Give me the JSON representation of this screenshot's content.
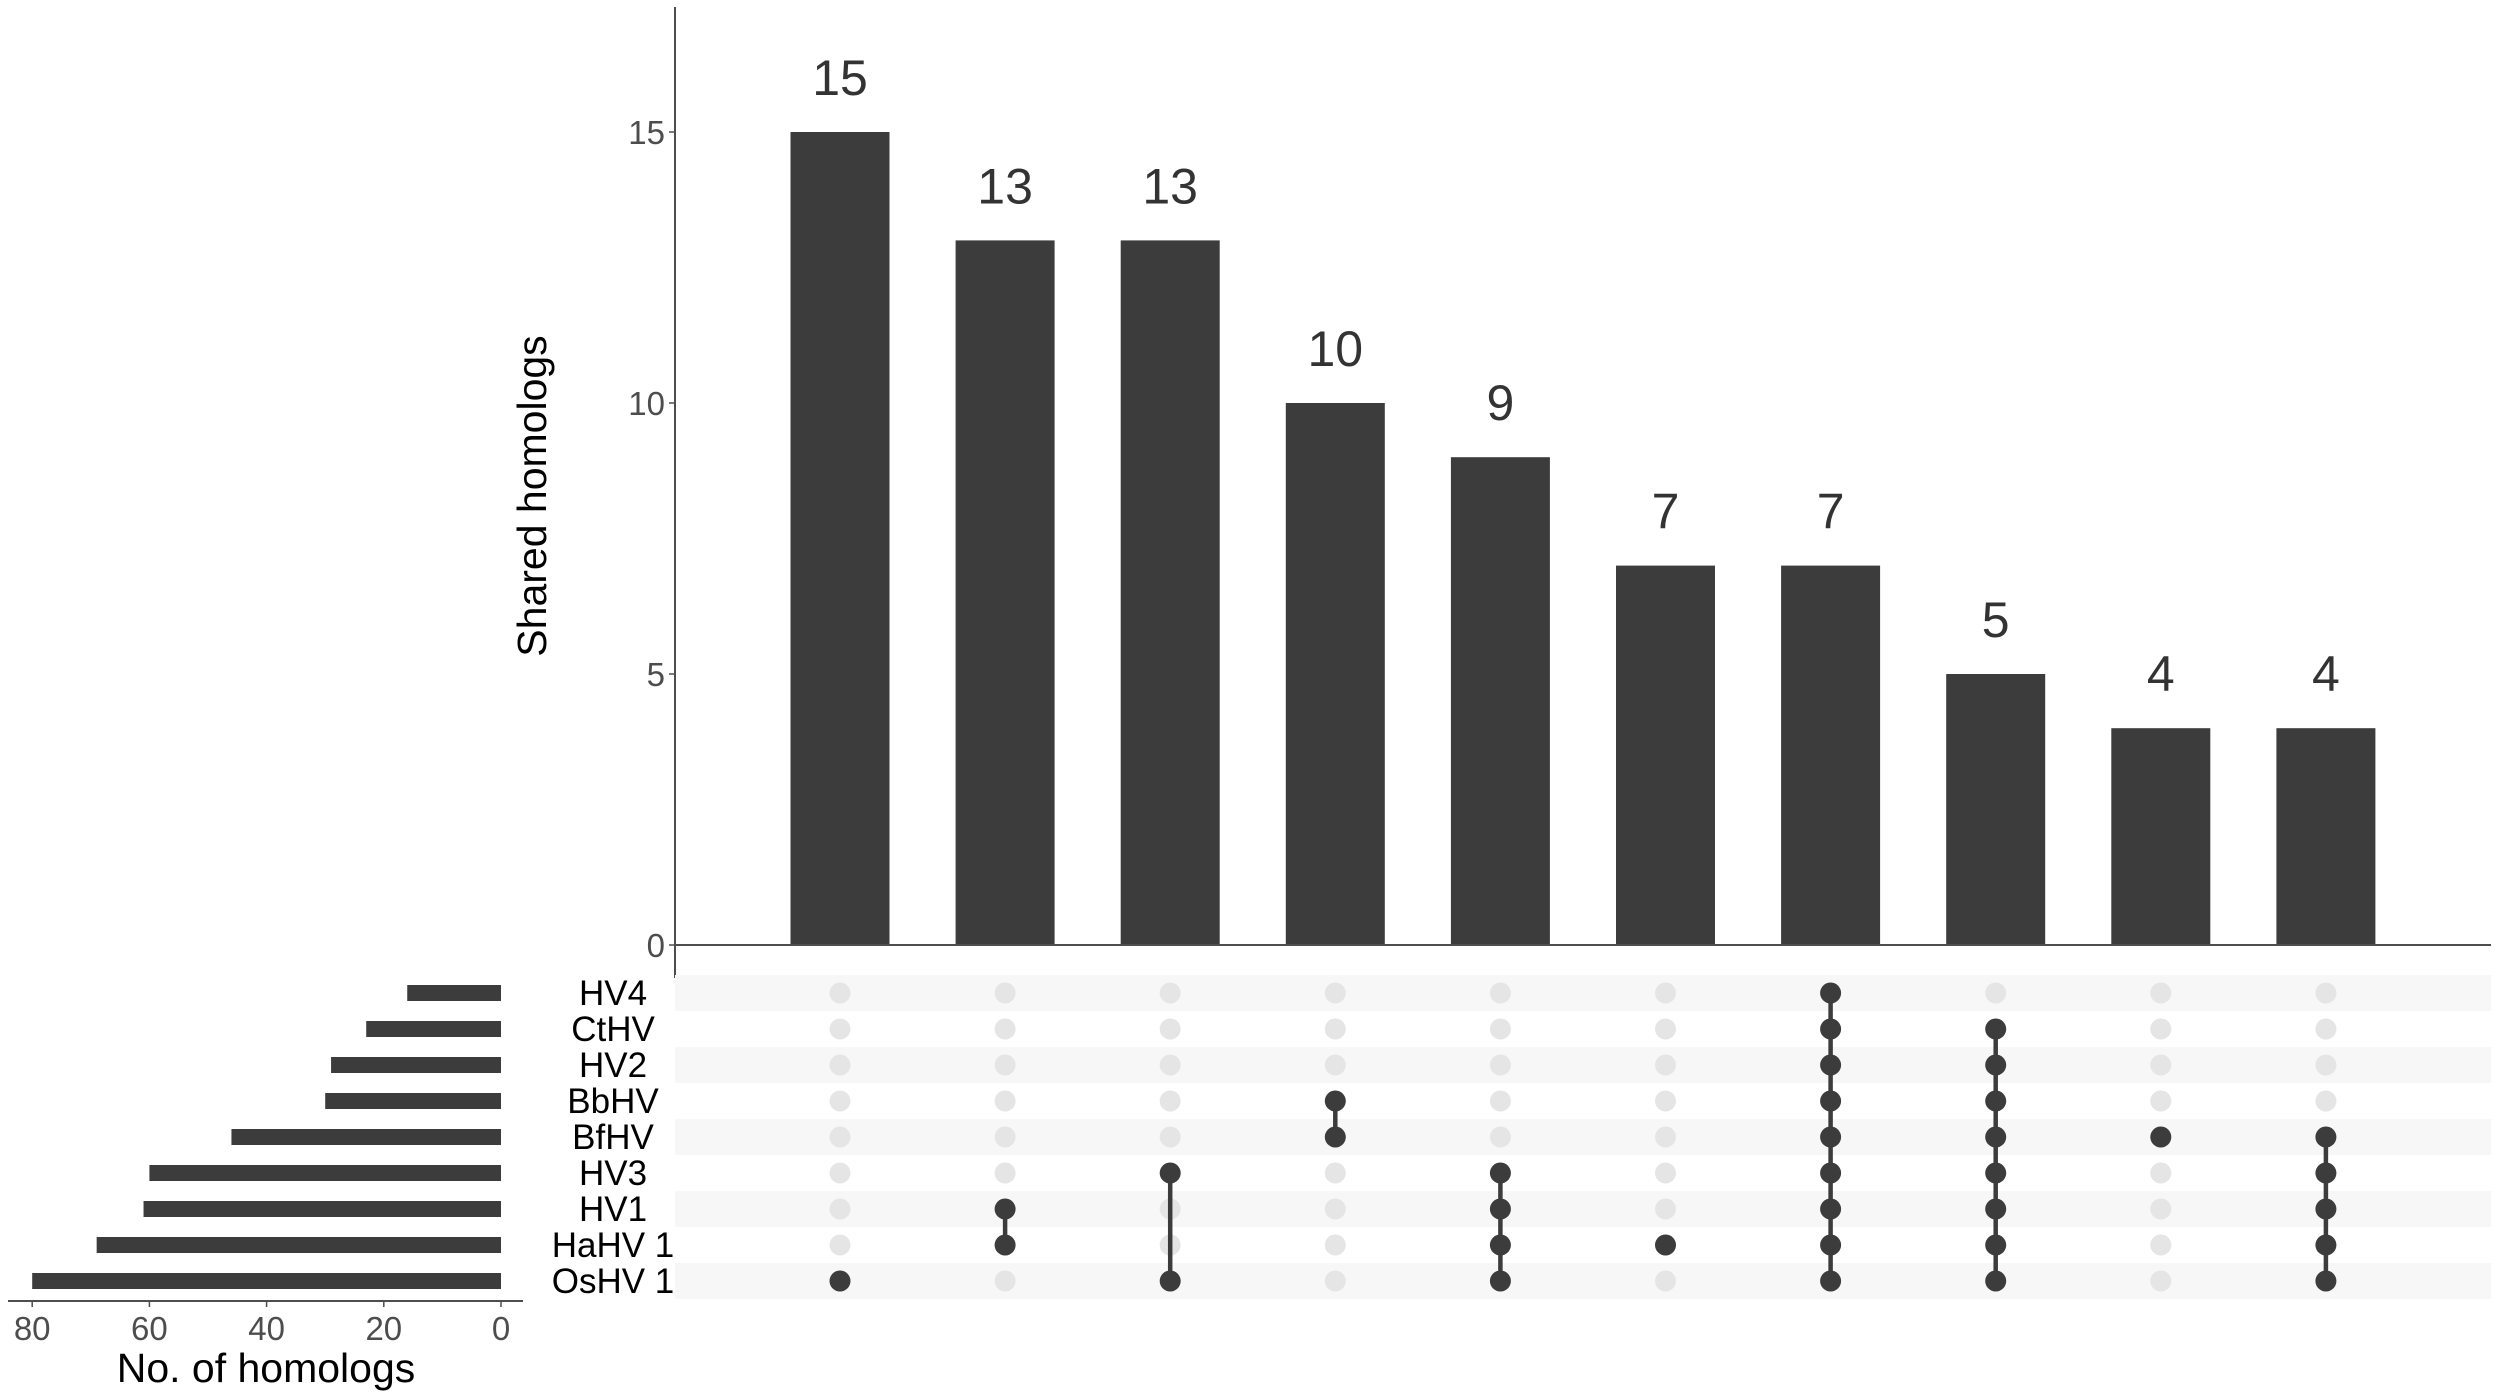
{
  "chart_data": {
    "type": "upset",
    "title": "",
    "intersection_bars": {
      "ylabel": "Shared homologs",
      "ylim": [
        0,
        17.4
      ],
      "yticks": [
        0,
        5,
        10,
        15
      ],
      "values": [
        15,
        13,
        13,
        10,
        9,
        7,
        7,
        5,
        4,
        4
      ],
      "labels": [
        "15",
        "13",
        "13",
        "10",
        "9",
        "7",
        "7",
        "5",
        "4",
        "4"
      ]
    },
    "sets": [
      "HV4",
      "CtHV",
      "HV2",
      "BbHV",
      "BfHV",
      "HV3",
      "HV1",
      "HaHV 1",
      "OsHV 1"
    ],
    "set_sizes": {
      "xlabel": "No. of homologs",
      "xticks": [
        80,
        60,
        40,
        20,
        0
      ],
      "xlim": [
        0,
        80
      ],
      "values": [
        16,
        23,
        29,
        30,
        46,
        60,
        61,
        69,
        80
      ]
    },
    "intersections": [
      [
        "OsHV 1"
      ],
      [
        "HV1",
        "HaHV 1"
      ],
      [
        "HV3",
        "OsHV 1"
      ],
      [
        "BbHV",
        "BfHV"
      ],
      [
        "HV3",
        "HV1",
        "HaHV 1",
        "OsHV 1"
      ],
      [
        "HaHV 1"
      ],
      [
        "HV4",
        "CtHV",
        "HV2",
        "BbHV",
        "BfHV",
        "HV3",
        "HV1",
        "HaHV 1",
        "OsHV 1"
      ],
      [
        "CtHV",
        "HV2",
        "BbHV",
        "BfHV",
        "HV3",
        "HV1",
        "HaHV 1",
        "OsHV 1"
      ],
      [
        "BfHV"
      ],
      [
        "BfHV",
        "HV3",
        "HV1",
        "HaHV 1",
        "OsHV 1"
      ]
    ],
    "colors": {
      "bar": "#3c3c3c",
      "dot_active": "#3c3c3c",
      "dot_inactive": "#e5e5e5",
      "stripe": "#f7f7f7",
      "axis": "#4d4d4d"
    }
  }
}
